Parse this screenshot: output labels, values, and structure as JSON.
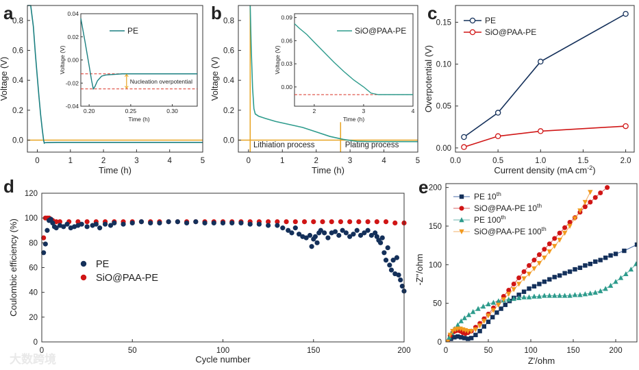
{
  "figure": {
    "watermark": "大数跨境",
    "colors": {
      "pe": "#1a7f80",
      "sio": "#d01515",
      "navy": "#14305a",
      "orange": "#f29a1e",
      "green": "#2d9b8c",
      "ref_line": "#e8a320",
      "dash": "#d93025"
    }
  },
  "chart_data": [
    {
      "id": "a",
      "panel_label": "a",
      "type": "line",
      "xlabel": "Time (h)",
      "ylabel": "Voltage (V)",
      "xlim": [
        -0.3,
        5
      ],
      "ylim": [
        -0.08,
        0.9
      ],
      "xticks": [
        0,
        1,
        2,
        3,
        4,
        5
      ],
      "yticks": [
        0.0,
        0.2,
        0.4,
        0.6,
        0.8
      ],
      "ytick_labels": [
        "0.0",
        "0.2",
        "0.4",
        "0.6",
        "0.8"
      ],
      "reference_line_y": 0.0,
      "series": [
        {
          "name": "PE",
          "x": [
            -0.3,
            -0.2,
            -0.12,
            -0.06,
            0.0,
            0.05,
            0.1,
            0.15,
            0.19,
            0.21,
            0.23,
            0.3,
            0.6,
            1.0,
            2.0,
            3.0,
            4.0,
            5.0
          ],
          "y": [
            0.9,
            0.9,
            0.76,
            0.58,
            0.42,
            0.29,
            0.17,
            0.07,
            0.0,
            -0.02,
            -0.017,
            -0.016,
            -0.015,
            -0.015,
            -0.015,
            -0.015,
            -0.015,
            -0.015
          ]
        }
      ],
      "inset": {
        "xlabel": "Time (h)",
        "ylabel": "Voltage (V)",
        "xlim": [
          0.19,
          0.33
        ],
        "ylim": [
          -0.04,
          0.04
        ],
        "xticks": [
          0.2,
          0.25,
          0.3
        ],
        "xtick_labels": [
          "0.20",
          "0.25",
          "0.30"
        ],
        "yticks": [
          -0.04,
          -0.02,
          0.0,
          0.02,
          0.04
        ],
        "ytick_labels": [
          "-0.04",
          "-0.02",
          "0.00",
          "0.02",
          "0.04"
        ],
        "legend": "PE",
        "annotation": "Nucleation overpotential",
        "dashed_levels": [
          -0.012,
          -0.025
        ],
        "series": {
          "x": [
            0.19,
            0.195,
            0.2,
            0.203,
            0.205,
            0.207,
            0.21,
            0.215,
            0.22,
            0.24,
            0.27,
            0.33
          ],
          "y": [
            0.036,
            0.016,
            -0.005,
            -0.018,
            -0.025,
            -0.023,
            -0.018,
            -0.014,
            -0.013,
            -0.012,
            -0.012,
            -0.012
          ]
        }
      }
    },
    {
      "id": "b",
      "panel_label": "b",
      "type": "line",
      "xlabel": "Time (h)",
      "ylabel": "Voltage (V)",
      "xlim": [
        -0.3,
        5
      ],
      "ylim": [
        -0.08,
        0.9
      ],
      "xticks": [
        0,
        1,
        2,
        3,
        4,
        5
      ],
      "yticks": [
        0.0,
        0.2,
        0.4,
        0.6,
        0.8
      ],
      "ytick_labels": [
        "0.0",
        "0.2",
        "0.4",
        "0.6",
        "0.8"
      ],
      "reference_line_y": 0.0,
      "vertical_markers": [
        0.05,
        2.72
      ],
      "region_labels": [
        "Lithiation process",
        "Plating process"
      ],
      "series": [
        {
          "name": "SiO@PAA-PE",
          "x": [
            0.05,
            0.08,
            0.12,
            0.16,
            0.2,
            0.3,
            0.5,
            0.8,
            1.2,
            1.6,
            2.0,
            2.4,
            2.8,
            3.2,
            3.6,
            4.0,
            5.0
          ],
          "y": [
            0.9,
            0.62,
            0.35,
            0.21,
            0.175,
            0.16,
            0.145,
            0.125,
            0.105,
            0.085,
            0.055,
            0.025,
            0.005,
            -0.008,
            -0.01,
            -0.01,
            -0.01
          ]
        }
      ],
      "inset": {
        "xlabel": "Time (h)",
        "ylabel": "Voltage (V)",
        "xlim": [
          1.6,
          4
        ],
        "ylim": [
          -0.025,
          0.095
        ],
        "xticks": [
          2,
          3,
          4
        ],
        "xtick_labels": [
          "2",
          "3",
          "4"
        ],
        "yticks": [
          0.0,
          0.03,
          0.06,
          0.09
        ],
        "ytick_labels": [
          "0.00",
          "0.03",
          "0.06",
          "0.09"
        ],
        "legend": "SiO@PAA-PE",
        "dashed_levels": [
          -0.01
        ],
        "series": {
          "x": [
            1.6,
            1.7,
            1.85,
            2.0,
            2.2,
            2.4,
            2.6,
            2.8,
            3.0,
            3.15,
            3.3,
            3.6,
            4.0
          ],
          "y": [
            0.082,
            0.076,
            0.068,
            0.058,
            0.045,
            0.032,
            0.02,
            0.009,
            0.0,
            -0.008,
            -0.01,
            -0.01,
            -0.01
          ]
        }
      }
    },
    {
      "id": "c",
      "panel_label": "c",
      "type": "line",
      "xlabel": "Current density (mA cm",
      "xlabel_sup": "-2",
      "xlabel_end": ")",
      "ylabel": "Overpotential (V)",
      "xlim": [
        0,
        2.1
      ],
      "ylim": [
        -0.005,
        0.17
      ],
      "xticks": [
        0.0,
        0.5,
        1.0,
        1.5,
        2.0
      ],
      "xtick_labels": [
        "0.0",
        "0.5",
        "1.0",
        "1.5",
        "2.0"
      ],
      "yticks": [
        0.0,
        0.05,
        0.1,
        0.15
      ],
      "ytick_labels": [
        "0.00",
        "0.05",
        "0.10",
        "0.15"
      ],
      "series": [
        {
          "name": "PE",
          "x": [
            0.1,
            0.5,
            1.0,
            2.0
          ],
          "y": [
            0.013,
            0.042,
            0.103,
            0.16
          ]
        },
        {
          "name": "SiO@PAA-PE",
          "x": [
            0.1,
            0.5,
            1.0,
            2.0
          ],
          "y": [
            0.001,
            0.014,
            0.02,
            0.026
          ]
        }
      ]
    },
    {
      "id": "d",
      "panel_label": "d",
      "type": "scatter",
      "xlabel": "Cycle number",
      "ylabel": "Coulombic efficiency (%)",
      "xlim": [
        0,
        200
      ],
      "ylim": [
        0,
        120
      ],
      "xticks": [
        0,
        50,
        100,
        150,
        200
      ],
      "yticks": [
        0,
        20,
        40,
        60,
        80,
        100,
        120
      ],
      "series": [
        {
          "name": "PE",
          "x": [
            1,
            2,
            3,
            4,
            5,
            6,
            7,
            8,
            10,
            12,
            14,
            16,
            18,
            20,
            22,
            25,
            28,
            30,
            32,
            35,
            38,
            40,
            45,
            50,
            55,
            60,
            65,
            70,
            75,
            80,
            85,
            90,
            95,
            100,
            105,
            110,
            115,
            120,
            125,
            130,
            133,
            136,
            138,
            140,
            142,
            144,
            146,
            148,
            149,
            150,
            151,
            152,
            153,
            154,
            156,
            158,
            160,
            162,
            164,
            166,
            168,
            170,
            172,
            174,
            176,
            178,
            180,
            182,
            184,
            185,
            186,
            187,
            188,
            189,
            190,
            191,
            192,
            193,
            194,
            195,
            196,
            197,
            198,
            199,
            200
          ],
          "y": [
            72,
            79,
            90,
            98,
            99,
            96,
            93,
            92,
            94,
            93,
            95,
            92,
            93,
            94,
            95,
            93,
            94,
            95,
            92,
            95,
            94,
            96,
            95,
            96,
            97,
            96,
            96,
            97,
            97,
            96,
            97,
            96,
            96,
            96,
            96,
            96,
            95,
            95,
            94,
            94,
            92,
            90,
            88,
            92,
            87,
            85,
            84,
            86,
            77,
            83,
            85,
            80,
            88,
            90,
            88,
            84,
            88,
            89,
            86,
            90,
            88,
            85,
            87,
            90,
            86,
            88,
            90,
            86,
            88,
            85,
            82,
            80,
            84,
            72,
            66,
            76,
            62,
            58,
            66,
            55,
            68,
            54,
            50,
            45,
            41
          ]
        },
        {
          "name": "SiO@PAA-PE",
          "x": [
            1,
            2,
            3,
            4,
            5,
            6,
            8,
            10,
            15,
            20,
            25,
            30,
            35,
            40,
            45,
            50,
            55,
            60,
            65,
            70,
            75,
            80,
            85,
            90,
            95,
            100,
            105,
            110,
            115,
            120,
            125,
            130,
            135,
            140,
            145,
            150,
            155,
            160,
            165,
            170,
            175,
            180,
            185,
            190,
            195,
            200
          ],
          "y": [
            84,
            100,
            100,
            100,
            99,
            98,
            97,
            97,
            97,
            97,
            97,
            97,
            97,
            97,
            97,
            97,
            97,
            97,
            97,
            97,
            97,
            97,
            97,
            97,
            97,
            97,
            97,
            97,
            97,
            97,
            97,
            97,
            97,
            97,
            97,
            97,
            97,
            97,
            97,
            97,
            97,
            97,
            97,
            97,
            96,
            96
          ]
        }
      ]
    },
    {
      "id": "e",
      "panel_label": "e",
      "type": "line",
      "xlabel": "Z'/ohm",
      "ylabel": "-Z''/ohm",
      "xlim": [
        0,
        225
      ],
      "ylim": [
        0,
        205
      ],
      "xticks": [
        0,
        50,
        100,
        150,
        200
      ],
      "yticks": [
        0,
        50,
        100,
        150,
        200
      ],
      "series": [
        {
          "name": "PE 10",
          "sup": "th",
          "x": [
            2,
            6,
            10,
            14,
            18,
            22,
            26,
            30,
            35,
            40,
            45,
            50,
            55,
            60,
            65,
            70,
            75,
            80,
            86,
            92,
            98,
            104,
            110,
            116,
            122,
            128,
            134,
            140,
            146,
            152,
            158,
            164,
            170,
            176,
            182,
            188,
            194,
            200,
            210,
            225
          ],
          "y": [
            0,
            4,
            6,
            7,
            6,
            5,
            4,
            5,
            9,
            14,
            20,
            26,
            32,
            38,
            43,
            48,
            53,
            57,
            61,
            65,
            69,
            72,
            75,
            78,
            81,
            84,
            86,
            89,
            91,
            94,
            96,
            99,
            101,
            104,
            106,
            109,
            112,
            114,
            118,
            126
          ]
        },
        {
          "name": "SiO@PAA-PE 10",
          "sup": "th",
          "x": [
            2,
            5,
            8,
            11,
            14,
            17,
            20,
            23,
            26,
            30,
            35,
            40,
            45,
            50,
            56,
            62,
            68,
            74,
            80,
            86,
            92,
            98,
            104,
            110,
            116,
            122,
            128,
            134,
            140,
            146,
            152,
            158,
            164,
            170,
            176,
            182,
            190
          ],
          "y": [
            0,
            8,
            12,
            14,
            15,
            14,
            12,
            11,
            12,
            14,
            19,
            24,
            30,
            36,
            44,
            51,
            59,
            67,
            75,
            83,
            91,
            99,
            106,
            113,
            120,
            127,
            134,
            141,
            148,
            155,
            161,
            168,
            175,
            181,
            187,
            193,
            200
          ]
        },
        {
          "name": "PE 100",
          "sup": "th",
          "x": [
            2,
            4,
            7,
            10,
            14,
            18,
            22,
            27,
            32,
            38,
            44,
            50,
            56,
            62,
            68,
            74,
            80,
            86,
            92,
            98,
            104,
            110,
            116,
            122,
            128,
            134,
            140,
            146,
            152,
            158,
            164,
            170,
            176,
            182,
            188,
            194,
            200,
            206,
            212,
            218,
            224
          ],
          "y": [
            0,
            6,
            12,
            17,
            22,
            27,
            31,
            35,
            39,
            43,
            46,
            49,
            51,
            53,
            54,
            55,
            56,
            57,
            58,
            58,
            59,
            59,
            60,
            60,
            60,
            60,
            60,
            60,
            61,
            61,
            62,
            63,
            64,
            66,
            69,
            73,
            78,
            83,
            88,
            94,
            101
          ]
        },
        {
          "name": "SiO@PAA-PE 100",
          "sup": "th",
          "x": [
            2,
            5,
            8,
            11,
            14,
            17,
            20,
            23,
            26,
            30,
            35,
            40,
            45,
            50,
            56,
            62,
            68,
            74,
            80,
            86,
            92,
            98,
            104,
            110,
            116,
            122,
            128,
            134,
            140,
            146,
            152,
            158,
            164,
            170
          ],
          "y": [
            0,
            9,
            14,
            16,
            17,
            17,
            16,
            15,
            14,
            14,
            16,
            21,
            27,
            34,
            41,
            48,
            55,
            62,
            68,
            75,
            82,
            88,
            95,
            102,
            109,
            117,
            124,
            132,
            141,
            150,
            160,
            170,
            181,
            194
          ]
        }
      ]
    }
  ]
}
